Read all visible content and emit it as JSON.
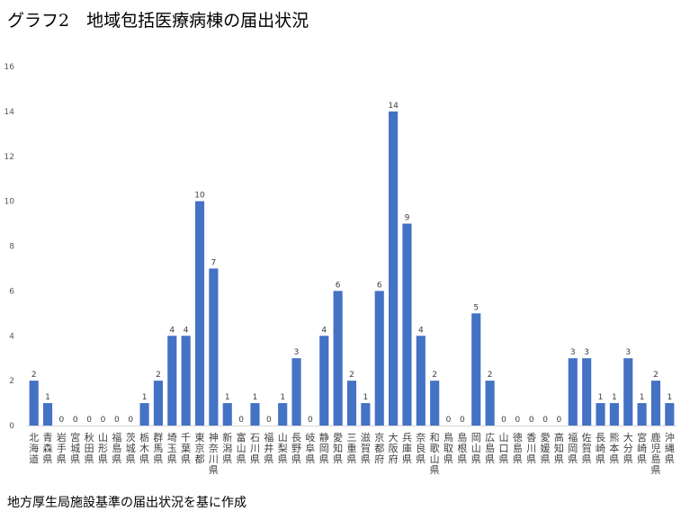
{
  "title": "グラフ2　地域包括医療病棟の届出状況",
  "note": "地方厚生局施設基準の届出状況を基に作成",
  "chart_data": {
    "type": "bar",
    "title": "グラフ2　地域包括医療病棟の届出状況",
    "xlabel": "",
    "ylabel": "",
    "ylim": [
      0,
      16
    ],
    "yticks": [
      0,
      2,
      4,
      6,
      8,
      10,
      12,
      14,
      16
    ],
    "grid": false,
    "colors": {
      "bar": "#4472C4"
    },
    "categories": [
      "北海道",
      "青森県",
      "岩手県",
      "宮城県",
      "秋田県",
      "山形県",
      "福島県",
      "茨城県",
      "栃木県",
      "群馬県",
      "埼玉県",
      "千葉県",
      "東京都",
      "神奈川県",
      "新潟県",
      "富山県",
      "石川県",
      "福井県",
      "山梨県",
      "長野県",
      "岐阜県",
      "静岡県",
      "愛知県",
      "三重県",
      "滋賀県",
      "京都府",
      "大阪府",
      "兵庫県",
      "奈良県",
      "和歌山県",
      "鳥取県",
      "島根県",
      "岡山県",
      "広島県",
      "山口県",
      "徳島県",
      "香川県",
      "愛媛県",
      "高知県",
      "福岡県",
      "佐賀県",
      "長崎県",
      "熊本県",
      "大分県",
      "宮崎県",
      "鹿児島県",
      "沖縄県"
    ],
    "values": [
      2,
      1,
      0,
      0,
      0,
      0,
      0,
      0,
      1,
      2,
      4,
      4,
      10,
      7,
      1,
      0,
      1,
      0,
      1,
      3,
      0,
      4,
      6,
      2,
      1,
      6,
      14,
      9,
      4,
      2,
      0,
      0,
      5,
      2,
      0,
      0,
      0,
      0,
      0,
      3,
      3,
      1,
      1,
      3,
      1,
      2,
      1
    ]
  }
}
